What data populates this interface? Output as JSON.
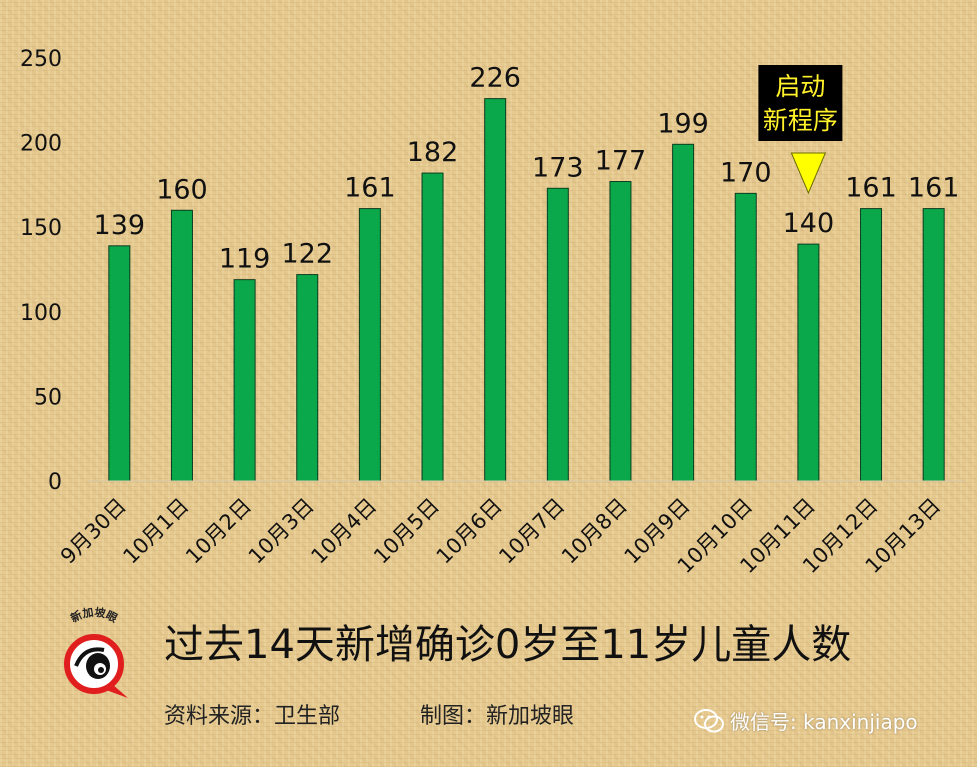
{
  "chart_data": {
    "type": "bar",
    "categories": [
      "9月30日",
      "10月1日",
      "10月2日",
      "10月3日",
      "10月4日",
      "10月5日",
      "10月6日",
      "10月7日",
      "10月8日",
      "10月9日",
      "10月10日",
      "10月11日",
      "10月12日",
      "10月13日"
    ],
    "values": [
      139,
      160,
      119,
      122,
      161,
      182,
      226,
      173,
      177,
      199,
      170,
      140,
      161,
      161
    ],
    "ylim": [
      0,
      250
    ],
    "yticks": [
      0,
      50,
      100,
      150,
      200,
      250
    ],
    "bar_color": "#0aa84a",
    "grid": false,
    "title": "过去14天新增确诊0岁至11岁儿童人数",
    "annotation": {
      "category_index": 11,
      "lines": [
        "启动",
        "新程序"
      ],
      "box_color": "#000000",
      "text_color": "#fff12a",
      "marker_color": "#ffff00",
      "marker": "down-triangle"
    }
  },
  "footer": {
    "source": "资料来源：卫生部",
    "made_by": "制图：新加坡眼",
    "logo_text": "新加坡眼",
    "wechat": "微信号: kanxinjiapo"
  },
  "icons": {
    "logo": "magnifier-eye-logo-icon",
    "wechat": "wechat-icon"
  }
}
